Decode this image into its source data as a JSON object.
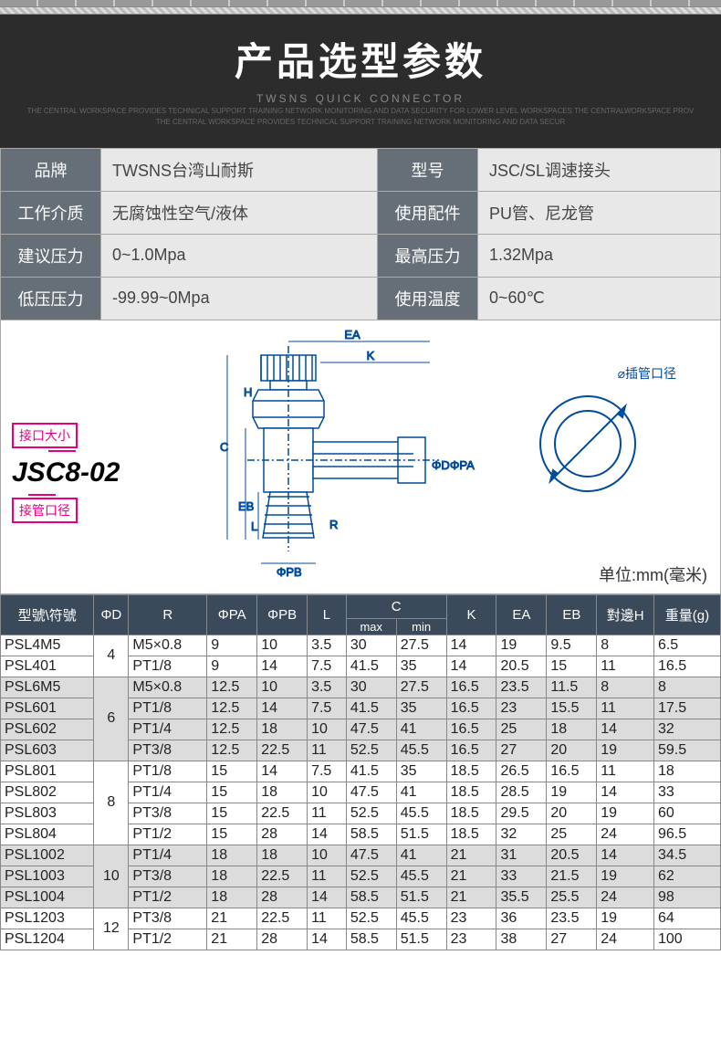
{
  "header": {
    "title": "产品选型参数",
    "subtitle": "TWSNS QUICK CONNECTOR",
    "smalltext1": "THE CENTRAL WORKSPACE PROVIDES TECHNICAL SUPPORT TRAINING NETWORK MONITORING AND DATA SECURITY FOR LOWER LEVEL WORKSPACES THE CENTRALWORKSPACE PROV",
    "smalltext2": "THE CENTRAL WORKSPACE PROVIDES TECHNICAL SUPPORT TRAINING NETWORK MONITORING AND DATA SECUR"
  },
  "params": {
    "brand_label": "品牌",
    "brand_value": "TWSNS台湾山耐斯",
    "model_label": "型号",
    "model_value": "JSC/SL调速接头",
    "medium_label": "工作介质",
    "medium_value": "无腐蚀性空气/液体",
    "acc_label": "使用配件",
    "acc_value": "PU管、尼龙管",
    "press_label": "建议压力",
    "press_value": "0~1.0Mpa",
    "maxp_label": "最高压力",
    "maxp_value": "1.32Mpa",
    "lowp_label": "低压压力",
    "lowp_value": "-99.99~0Mpa",
    "temp_label": "使用温度",
    "temp_value": "0~60℃"
  },
  "diagram": {
    "tag_top": "接口大小",
    "tag_bottom": "接管口径",
    "model_code": "JSC8-02",
    "circle_label": "⌀插管口径",
    "unit": "单位:mm(毫米)",
    "labels": {
      "EA": "EA",
      "K": "K",
      "H": "H",
      "C": "C",
      "EB": "EB",
      "L": "L",
      "R": "R",
      "PB": "ΦPB",
      "D": "ΦD",
      "PA": "ΦPA"
    }
  },
  "spec": {
    "headers": [
      "型號\\符號",
      "ΦD",
      "R",
      "ΦPA",
      "ΦPB",
      "L",
      "C",
      "K",
      "EA",
      "EB",
      "對邊H",
      "重量(g)"
    ],
    "sub_c": [
      "max",
      "min"
    ],
    "groups": [
      {
        "shade": false,
        "phiD": "4",
        "rows": [
          {
            "m": "PSL4M5",
            "r": "M5×0.8",
            "pa": "9",
            "pb": "10",
            "l": "3.5",
            "cmax": "30",
            "cmin": "27.5",
            "k": "14",
            "ea": "19",
            "eb": "9.5",
            "h": "8",
            "w": "6.5"
          },
          {
            "m": "PSL401",
            "r": "PT1/8",
            "pa": "9",
            "pb": "14",
            "l": "7.5",
            "cmax": "41.5",
            "cmin": "35",
            "k": "14",
            "ea": "20.5",
            "eb": "15",
            "h": "11",
            "w": "16.5"
          }
        ]
      },
      {
        "shade": true,
        "phiD": "6",
        "rows": [
          {
            "m": "PSL6M5",
            "r": "M5×0.8",
            "pa": "12.5",
            "pb": "10",
            "l": "3.5",
            "cmax": "30",
            "cmin": "27.5",
            "k": "16.5",
            "ea": "23.5",
            "eb": "11.5",
            "h": "8",
            "w": "8"
          },
          {
            "m": "PSL601",
            "r": "PT1/8",
            "pa": "12.5",
            "pb": "14",
            "l": "7.5",
            "cmax": "41.5",
            "cmin": "35",
            "k": "16.5",
            "ea": "23",
            "eb": "15.5",
            "h": "11",
            "w": "17.5"
          },
          {
            "m": "PSL602",
            "r": "PT1/4",
            "pa": "12.5",
            "pb": "18",
            "l": "10",
            "cmax": "47.5",
            "cmin": "41",
            "k": "16.5",
            "ea": "25",
            "eb": "18",
            "h": "14",
            "w": "32"
          },
          {
            "m": "PSL603",
            "r": "PT3/8",
            "pa": "12.5",
            "pb": "22.5",
            "l": "11",
            "cmax": "52.5",
            "cmin": "45.5",
            "k": "16.5",
            "ea": "27",
            "eb": "20",
            "h": "19",
            "w": "59.5"
          }
        ]
      },
      {
        "shade": false,
        "phiD": "8",
        "rows": [
          {
            "m": "PSL801",
            "r": "PT1/8",
            "pa": "15",
            "pb": "14",
            "l": "7.5",
            "cmax": "41.5",
            "cmin": "35",
            "k": "18.5",
            "ea": "26.5",
            "eb": "16.5",
            "h": "11",
            "w": "18"
          },
          {
            "m": "PSL802",
            "r": "PT1/4",
            "pa": "15",
            "pb": "18",
            "l": "10",
            "cmax": "47.5",
            "cmin": "41",
            "k": "18.5",
            "ea": "28.5",
            "eb": "19",
            "h": "14",
            "w": "33"
          },
          {
            "m": "PSL803",
            "r": "PT3/8",
            "pa": "15",
            "pb": "22.5",
            "l": "11",
            "cmax": "52.5",
            "cmin": "45.5",
            "k": "18.5",
            "ea": "29.5",
            "eb": "20",
            "h": "19",
            "w": "60"
          },
          {
            "m": "PSL804",
            "r": "PT1/2",
            "pa": "15",
            "pb": "28",
            "l": "14",
            "cmax": "58.5",
            "cmin": "51.5",
            "k": "18.5",
            "ea": "32",
            "eb": "25",
            "h": "24",
            "w": "96.5"
          }
        ]
      },
      {
        "shade": true,
        "phiD": "10",
        "rows": [
          {
            "m": "PSL1002",
            "r": "PT1/4",
            "pa": "18",
            "pb": "18",
            "l": "10",
            "cmax": "47.5",
            "cmin": "41",
            "k": "21",
            "ea": "31",
            "eb": "20.5",
            "h": "14",
            "w": "34.5"
          },
          {
            "m": "PSL1003",
            "r": "PT3/8",
            "pa": "18",
            "pb": "22.5",
            "l": "11",
            "cmax": "52.5",
            "cmin": "45.5",
            "k": "21",
            "ea": "33",
            "eb": "21.5",
            "h": "19",
            "w": "62"
          },
          {
            "m": "PSL1004",
            "r": "PT1/2",
            "pa": "18",
            "pb": "28",
            "l": "14",
            "cmax": "58.5",
            "cmin": "51.5",
            "k": "21",
            "ea": "35.5",
            "eb": "25.5",
            "h": "24",
            "w": "98"
          }
        ]
      },
      {
        "shade": false,
        "phiD": "12",
        "rows": [
          {
            "m": "PSL1203",
            "r": "PT3/8",
            "pa": "21",
            "pb": "22.5",
            "l": "11",
            "cmax": "52.5",
            "cmin": "45.5",
            "k": "23",
            "ea": "36",
            "eb": "23.5",
            "h": "19",
            "w": "64"
          },
          {
            "m": "PSL1204",
            "r": "PT1/2",
            "pa": "21",
            "pb": "28",
            "l": "14",
            "cmax": "58.5",
            "cmin": "51.5",
            "k": "23",
            "ea": "38",
            "eb": "27",
            "h": "24",
            "w": "100"
          }
        ]
      }
    ]
  }
}
